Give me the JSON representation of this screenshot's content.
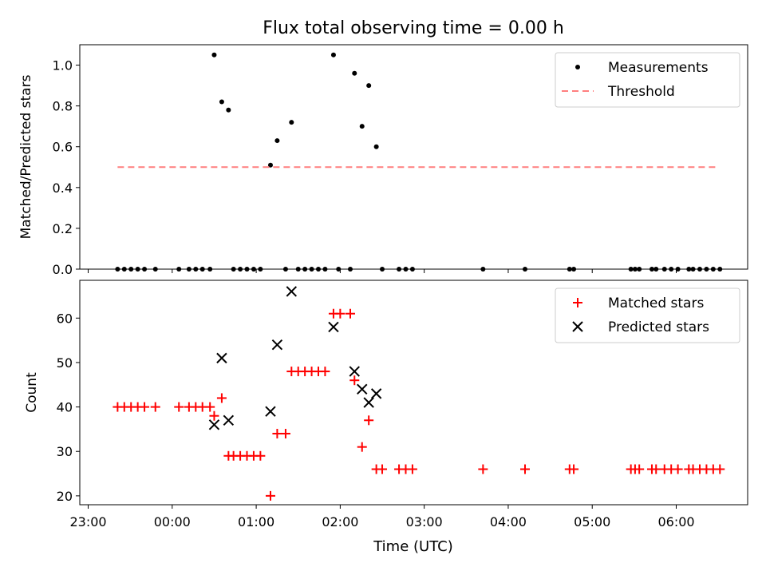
{
  "chart_data": {
    "title": "Flux total observing time = 0.00 h",
    "x_axis": {
      "label": "Time (UTC)",
      "unit": "hours since 23:00",
      "range": [
        -0.1,
        7.85
      ],
      "ticks": [
        {
          "v": 0,
          "label": "23:00"
        },
        {
          "v": 1,
          "label": "00:00"
        },
        {
          "v": 2,
          "label": "01:00"
        },
        {
          "v": 3,
          "label": "02:00"
        },
        {
          "v": 4,
          "label": "03:00"
        },
        {
          "v": 5,
          "label": "04:00"
        },
        {
          "v": 6,
          "label": "05:00"
        },
        {
          "v": 7,
          "label": "06:00"
        }
      ]
    },
    "charts": [
      {
        "type": "scatter",
        "ylabel": "Matched/Predicted stars",
        "ylim": [
          0.0,
          1.1
        ],
        "yticks": [
          "0.0",
          "0.2",
          "0.4",
          "0.6",
          "0.8",
          "1.0"
        ],
        "legend_position": "top-right",
        "series": [
          {
            "name": "Measurements",
            "marker": "dot",
            "color": "#000000",
            "points": [
              [
                0.35,
                0
              ],
              [
                0.43,
                0
              ],
              [
                0.51,
                0
              ],
              [
                0.59,
                0
              ],
              [
                0.67,
                0
              ],
              [
                0.8,
                0
              ],
              [
                1.08,
                0
              ],
              [
                1.2,
                0
              ],
              [
                1.28,
                0
              ],
              [
                1.36,
                0
              ],
              [
                1.45,
                0
              ],
              [
                1.73,
                0
              ],
              [
                1.81,
                0
              ],
              [
                1.89,
                0
              ],
              [
                1.97,
                0
              ],
              [
                2.05,
                0
              ],
              [
                2.35,
                0
              ],
              [
                2.5,
                0
              ],
              [
                2.58,
                0
              ],
              [
                2.66,
                0
              ],
              [
                2.74,
                0
              ],
              [
                2.82,
                0
              ],
              [
                2.98,
                0
              ],
              [
                3.12,
                0
              ],
              [
                3.5,
                0
              ],
              [
                3.7,
                0
              ],
              [
                3.78,
                0
              ],
              [
                3.86,
                0
              ],
              [
                4.7,
                0
              ],
              [
                5.2,
                0
              ],
              [
                5.73,
                0
              ],
              [
                5.78,
                0
              ],
              [
                6.46,
                0
              ],
              [
                6.51,
                0
              ],
              [
                6.56,
                0
              ],
              [
                6.71,
                0
              ],
              [
                6.76,
                0
              ],
              [
                6.86,
                0
              ],
              [
                6.94,
                0
              ],
              [
                7.02,
                0
              ],
              [
                7.15,
                0
              ],
              [
                7.2,
                0
              ],
              [
                7.28,
                0
              ],
              [
                7.36,
                0
              ],
              [
                7.44,
                0
              ],
              [
                7.52,
                0
              ],
              [
                1.5,
                1.05
              ],
              [
                1.59,
                0.82
              ],
              [
                1.67,
                0.78
              ],
              [
                2.17,
                0.51
              ],
              [
                2.25,
                0.63
              ],
              [
                2.42,
                0.72
              ],
              [
                2.92,
                1.05
              ],
              [
                3.17,
                0.96
              ],
              [
                3.26,
                0.7
              ],
              [
                3.34,
                0.9
              ],
              [
                3.43,
                0.6
              ]
            ]
          },
          {
            "name": "Threshold",
            "marker": "dashed-line",
            "color": "#ff7f7f",
            "points": [
              [
                0.35,
                0.5
              ],
              [
                7.5,
                0.5
              ]
            ]
          }
        ]
      },
      {
        "type": "scatter",
        "ylabel": "Count",
        "ylim": [
          18,
          68.5
        ],
        "yticks": [
          "20",
          "30",
          "40",
          "50",
          "60"
        ],
        "legend_position": "top-right",
        "series": [
          {
            "name": "Matched stars",
            "marker": "plus",
            "color": "#ff0000",
            "points": [
              [
                0.35,
                40
              ],
              [
                0.43,
                40
              ],
              [
                0.51,
                40
              ],
              [
                0.59,
                40
              ],
              [
                0.67,
                40
              ],
              [
                0.8,
                40
              ],
              [
                1.08,
                40
              ],
              [
                1.2,
                40
              ],
              [
                1.28,
                40
              ],
              [
                1.36,
                40
              ],
              [
                1.45,
                40
              ],
              [
                1.5,
                38
              ],
              [
                1.59,
                42
              ],
              [
                1.67,
                29
              ],
              [
                1.73,
                29
              ],
              [
                1.81,
                29
              ],
              [
                1.89,
                29
              ],
              [
                1.97,
                29
              ],
              [
                2.05,
                29
              ],
              [
                2.17,
                20
              ],
              [
                2.25,
                34
              ],
              [
                2.35,
                34
              ],
              [
                2.42,
                48
              ],
              [
                2.5,
                48
              ],
              [
                2.58,
                48
              ],
              [
                2.66,
                48
              ],
              [
                2.74,
                48
              ],
              [
                2.82,
                48
              ],
              [
                2.92,
                61
              ],
              [
                3.0,
                61
              ],
              [
                3.12,
                61
              ],
              [
                3.17,
                46
              ],
              [
                3.26,
                31
              ],
              [
                3.34,
                37
              ],
              [
                3.43,
                26
              ],
              [
                3.5,
                26
              ],
              [
                3.7,
                26
              ],
              [
                3.78,
                26
              ],
              [
                3.86,
                26
              ],
              [
                4.7,
                26
              ],
              [
                5.2,
                26
              ],
              [
                5.73,
                26
              ],
              [
                5.78,
                26
              ],
              [
                6.46,
                26
              ],
              [
                6.51,
                26
              ],
              [
                6.56,
                26
              ],
              [
                6.71,
                26
              ],
              [
                6.76,
                26
              ],
              [
                6.86,
                26
              ],
              [
                6.94,
                26
              ],
              [
                7.02,
                26
              ],
              [
                7.15,
                26
              ],
              [
                7.2,
                26
              ],
              [
                7.28,
                26
              ],
              [
                7.36,
                26
              ],
              [
                7.44,
                26
              ],
              [
                7.52,
                26
              ]
            ]
          },
          {
            "name": "Predicted stars",
            "marker": "x",
            "color": "#000000",
            "points": [
              [
                1.5,
                36
              ],
              [
                1.59,
                51
              ],
              [
                1.67,
                37
              ],
              [
                2.17,
                39
              ],
              [
                2.25,
                54
              ],
              [
                2.42,
                66
              ],
              [
                2.92,
                58
              ],
              [
                3.17,
                48
              ],
              [
                3.26,
                44
              ],
              [
                3.34,
                41
              ],
              [
                3.43,
                43
              ]
            ]
          }
        ]
      }
    ]
  }
}
